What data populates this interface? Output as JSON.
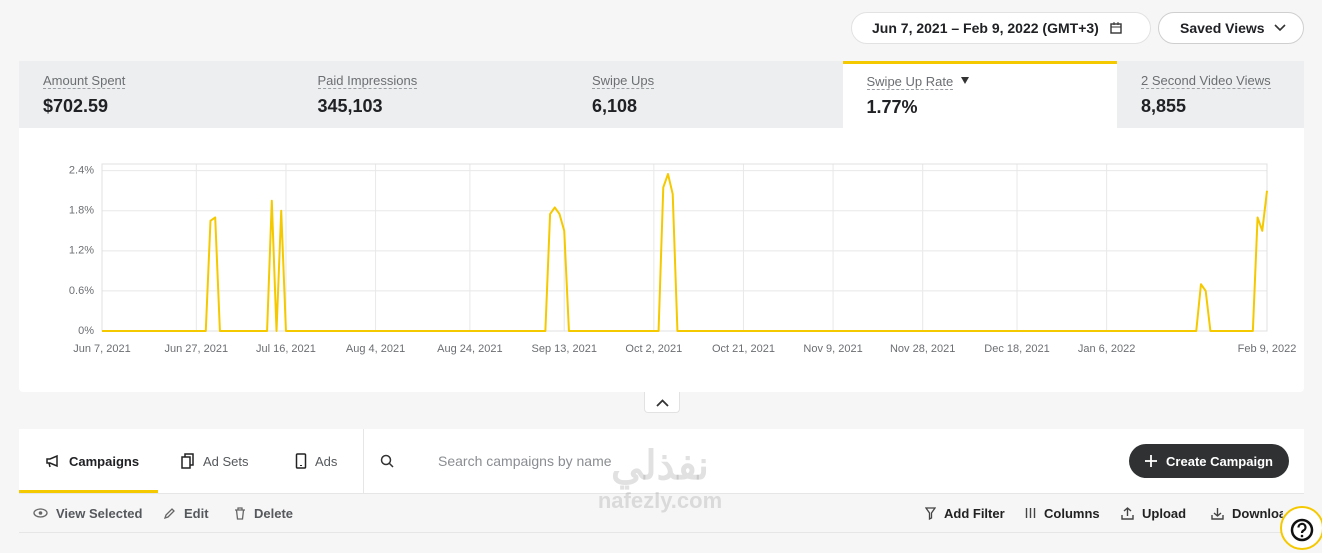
{
  "header": {
    "date_range": "Jun 7, 2021 – Feb 9, 2022 (GMT+3)",
    "saved_views": "Saved Views"
  },
  "metrics": [
    {
      "label": "Amount Spent",
      "value": "$702.59"
    },
    {
      "label": "Paid Impressions",
      "value": "345,103"
    },
    {
      "label": "Swipe Ups",
      "value": "6,108"
    },
    {
      "label": "Swipe Up Rate",
      "value": "1.77%",
      "selected": true
    },
    {
      "label": "2 Second Video Views",
      "value": "8,855"
    }
  ],
  "chart_data": {
    "type": "line",
    "color": "#f5c900",
    "grid": true,
    "x": [
      "2021-06-07",
      "2021-06-29",
      "2021-06-30",
      "2021-07-01",
      "2021-07-02",
      "2021-07-12",
      "2021-07-13",
      "2021-07-14",
      "2021-07-15",
      "2021-07-16",
      "2021-09-09",
      "2021-09-10",
      "2021-09-11",
      "2021-09-12",
      "2021-09-13",
      "2021-09-14",
      "2021-10-03",
      "2021-10-04",
      "2021-10-05",
      "2021-10-06",
      "2021-10-07",
      "2022-01-25",
      "2022-01-26",
      "2022-01-27",
      "2022-01-28",
      "2022-02-06",
      "2022-02-07",
      "2022-02-08",
      "2022-02-09"
    ],
    "values": [
      0,
      0,
      1.65,
      1.7,
      0,
      0,
      1.95,
      0,
      1.8,
      0,
      0,
      1.75,
      1.85,
      1.75,
      1.5,
      0,
      0,
      2.15,
      2.35,
      2.05,
      0,
      0,
      0.7,
      0.6,
      0,
      0,
      1.7,
      1.5,
      2.1
    ],
    "xlim": [
      "2021-06-07",
      "2022-02-09"
    ],
    "xticks": [
      {
        "value": "2021-06-07",
        "label": "Jun 7, 2021"
      },
      {
        "value": "2021-06-27",
        "label": "Jun 27, 2021"
      },
      {
        "value": "2021-07-16",
        "label": "Jul 16, 2021"
      },
      {
        "value": "2021-08-04",
        "label": "Aug 4, 2021"
      },
      {
        "value": "2021-08-24",
        "label": "Aug 24, 2021"
      },
      {
        "value": "2021-09-13",
        "label": "Sep 13, 2021"
      },
      {
        "value": "2021-10-02",
        "label": "Oct 2, 2021"
      },
      {
        "value": "2021-10-21",
        "label": "Oct 21, 2021"
      },
      {
        "value": "2021-11-09",
        "label": "Nov 9, 2021"
      },
      {
        "value": "2021-11-28",
        "label": "Nov 28, 2021"
      },
      {
        "value": "2021-12-18",
        "label": "Dec 18, 2021"
      },
      {
        "value": "2022-01-06",
        "label": "Jan 6, 2022"
      },
      {
        "value": "2022-02-09",
        "label": "Feb 9, 2022"
      }
    ],
    "ylim": [
      0,
      2.5
    ],
    "yticks": [
      {
        "value": 0,
        "label": "0%"
      },
      {
        "value": 0.6,
        "label": "0.6%"
      },
      {
        "value": 1.2,
        "label": "1.2%"
      },
      {
        "value": 1.8,
        "label": "1.8%"
      },
      {
        "value": 2.4,
        "label": "2.4%"
      }
    ]
  },
  "toolbar": {
    "tabs": [
      "Campaigns",
      "Ad Sets",
      "Ads"
    ],
    "search_placeholder": "Search campaigns by name",
    "create_button": "Create Campaign"
  },
  "actions": {
    "left": [
      "View Selected",
      "Edit",
      "Delete"
    ],
    "right": [
      "Add Filter",
      "Columns",
      "Upload",
      "Download"
    ]
  },
  "watermark": {
    "arabic": "نفذلي",
    "latin": "nafezly.com"
  }
}
